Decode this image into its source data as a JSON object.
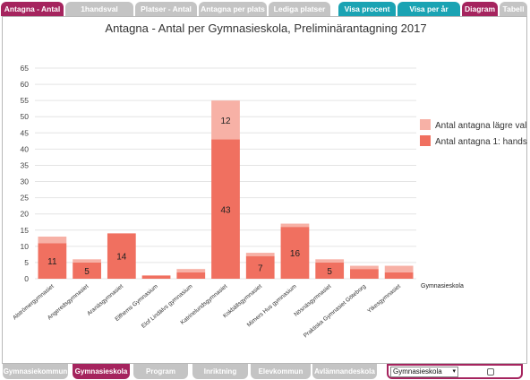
{
  "tabs": [
    {
      "label": "Antagna - Antal",
      "style": "pink"
    },
    {
      "label": "1handsval",
      "style": "grey"
    },
    {
      "label": "Platser - Antal",
      "style": "grey"
    },
    {
      "label": "Antagna per plats",
      "style": "grey"
    },
    {
      "label": "Lediga platser",
      "style": "grey"
    },
    {
      "label": "Visa procent",
      "style": "teal"
    },
    {
      "label": "Visa per år",
      "style": "teal"
    },
    {
      "label": "Diagram",
      "style": "pink"
    },
    {
      "label": "Tabell",
      "style": "grey"
    }
  ],
  "bottom_tabs": [
    {
      "label": "Gymnasiekommun",
      "style": "grey"
    },
    {
      "label": "Gymnasieskola",
      "style": "pink"
    },
    {
      "label": "Program",
      "style": "grey"
    },
    {
      "label": "Inriktning",
      "style": "grey"
    },
    {
      "label": "Elevkommun",
      "style": "grey"
    },
    {
      "label": "Avlämnandeskola",
      "style": "grey"
    }
  ],
  "controls": {
    "select_value": "Gymnasieskola"
  },
  "colors": {
    "primary": "#f07060",
    "secondary": "#f7b1a6",
    "tab_pink": "#a5245e",
    "tab_teal": "#1aa3b3",
    "tab_grey": "#c4c4c4"
  },
  "chart_data": {
    "type": "bar",
    "stacked": true,
    "title": "Antagna - Antal per Gymnasieskola, Preliminärantagning 2017",
    "xlabel": "Gymnasieskola",
    "ylabel": "",
    "ylim": [
      0,
      65
    ],
    "yticks": [
      0,
      5,
      10,
      15,
      20,
      25,
      30,
      35,
      40,
      45,
      50,
      55,
      60,
      65
    ],
    "grid": true,
    "legend_position": "right",
    "categories": [
      "Alströmergymnasiet",
      "Angeredsgymnasiet",
      "Aranäsgymnasiet",
      "Elfhems Gymnasium",
      "Elof Lindälvs gymnasium",
      "Katrinelundsgymnasiet",
      "Kokbällsgymnasiet",
      "Mimers Hus gymnasium",
      "Nösnäsgymnasiet",
      "Praktiska Gymnasiet Göteborg",
      "Ytkesgymnasiet"
    ],
    "series": [
      {
        "name": "Antal antagna 1: hands",
        "values": [
          11,
          5,
          14,
          1,
          2,
          43,
          7,
          16,
          5,
          3,
          2
        ],
        "show_labels": [
          true,
          true,
          true,
          false,
          false,
          true,
          true,
          true,
          true,
          false,
          false
        ]
      },
      {
        "name": "Antal antagna lägre val",
        "values": [
          2,
          1,
          0,
          0,
          1,
          12,
          1,
          1,
          1,
          1,
          2
        ],
        "show_labels": [
          false,
          false,
          false,
          false,
          false,
          true,
          false,
          false,
          false,
          false,
          false
        ]
      }
    ]
  }
}
